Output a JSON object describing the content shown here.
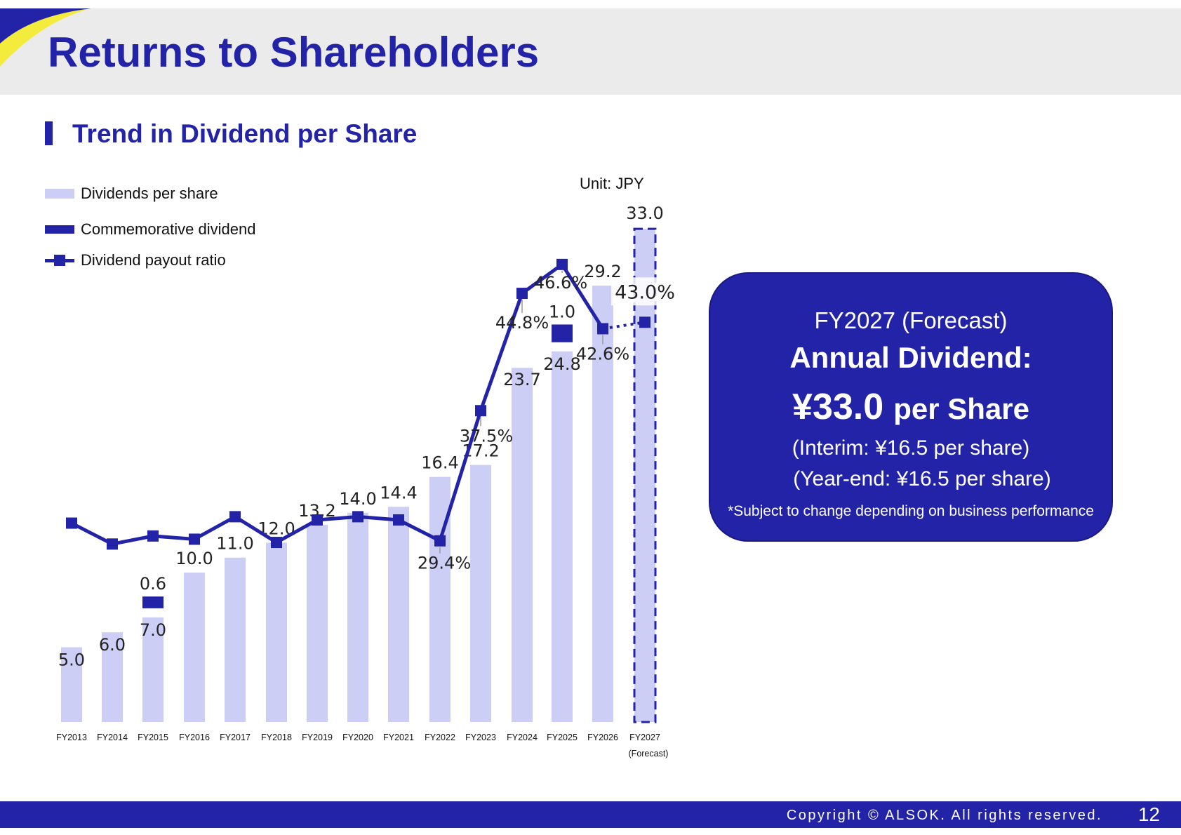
{
  "page": {
    "title": "Returns to Shareholders",
    "subtitle": "Trend in Dividend per Share",
    "unit": "Unit: JPY",
    "accent_color": "#2323a8",
    "bar_color": "#cccef5",
    "corner_accent_color": "#f4ec3c"
  },
  "legend": {
    "dividends": "Dividends per share",
    "commemorative": "Commemorative dividend",
    "ratio": "Dividend payout ratio"
  },
  "chart_data": {
    "type": "bar",
    "categories": [
      "FY2013",
      "FY2014",
      "FY2015",
      "FY2016",
      "FY2017",
      "FY2018",
      "FY2019",
      "FY2020",
      "FY2021",
      "FY2022",
      "FY2023",
      "FY2024",
      "FY2025",
      "FY2026",
      "FY2027"
    ],
    "category_notes": {
      "FY2027": "(Forecast)"
    },
    "series": [
      {
        "name": "Dividends per share",
        "type": "bar",
        "values": [
          5.0,
          6.0,
          7.0,
          10.0,
          11.0,
          12.0,
          13.2,
          14.0,
          14.4,
          16.4,
          17.2,
          23.7,
          24.8,
          29.2,
          33.0
        ],
        "labels": [
          "5.0",
          "6.0",
          "7.0",
          "10.0",
          "11.0",
          "12.0",
          "13.2",
          "14.0",
          "14.4",
          "16.4",
          "17.2",
          "23.7",
          "24.8",
          "29.2",
          "33.0"
        ]
      },
      {
        "name": "Commemorative dividend",
        "type": "bar-stacked",
        "values": [
          null,
          null,
          0.6,
          null,
          null,
          null,
          null,
          null,
          null,
          null,
          null,
          null,
          1.0,
          null,
          null
        ],
        "labels": [
          null,
          null,
          "0.6",
          null,
          null,
          null,
          null,
          null,
          null,
          null,
          null,
          null,
          "1.0",
          null,
          null
        ]
      },
      {
        "name": "Dividend payout ratio",
        "type": "line",
        "unit": "%",
        "values": [
          30.5,
          29.2,
          29.7,
          29.5,
          30.9,
          29.3,
          30.7,
          30.9,
          30.7,
          29.4,
          37.5,
          44.8,
          46.6,
          42.6,
          43.0
        ],
        "labels": [
          null,
          null,
          null,
          null,
          null,
          null,
          null,
          null,
          null,
          "29.4%",
          "37.5%",
          "44.8%",
          "46.6%",
          "42.6%",
          "43.0%"
        ]
      }
    ],
    "forecast_category": "FY2027",
    "legend_position": "top-left",
    "grid": false
  },
  "callout": {
    "label": "FY2027 (Forecast)",
    "heading": "Annual Dividend:",
    "amount": "¥33.0",
    "amount_suffix": "per Share",
    "interim": "(Interim: ¥16.5 per share)",
    "year_end": "(Year-end: ¥16.5 per share)",
    "note": "*Subject to change depending on business performance"
  },
  "footer": {
    "copyright": "Copyright © ALSOK. All rights reserved.",
    "page_number": "12"
  }
}
